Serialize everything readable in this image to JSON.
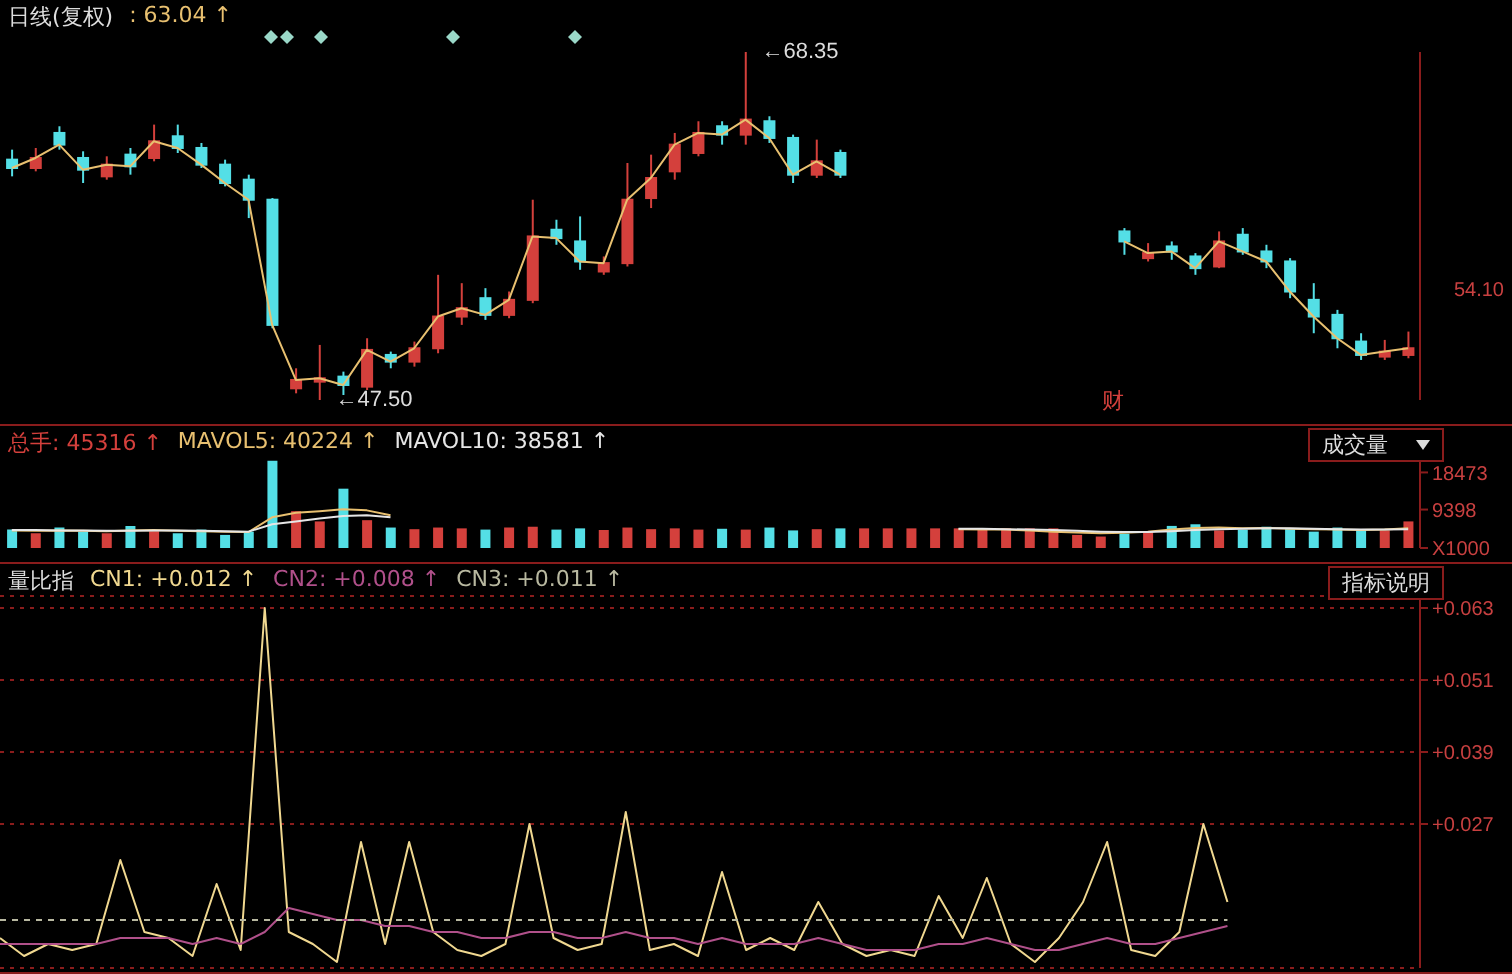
{
  "chart_data": [
    {
      "type": "candlestick",
      "title": "日线(复权)",
      "legend": "top left",
      "tick_labels": "y",
      "categories": [
        null,
        null,
        null,
        null,
        null,
        null,
        null,
        null,
        null,
        null,
        null,
        null,
        null,
        null,
        null,
        null,
        null,
        null,
        null,
        null,
        null,
        null,
        null,
        null,
        null,
        null,
        null,
        null,
        null,
        null,
        null,
        null,
        null,
        null,
        null,
        null,
        null,
        null,
        null,
        null,
        null,
        null,
        null,
        null,
        null,
        null,
        null,
        null,
        null,
        null,
        null,
        null,
        null,
        null,
        null,
        null,
        null,
        null,
        null,
        null
      ],
      "ohlc": [
        [
          61.9,
          62.5,
          60.9,
          61.4
        ],
        [
          61.4,
          62.6,
          61.2,
          62.0
        ],
        [
          63.5,
          63.9,
          62.5,
          62.8
        ],
        [
          62.0,
          62.4,
          60.5,
          61.3
        ],
        [
          60.9,
          62.1,
          60.7,
          61.6
        ],
        [
          62.2,
          62.6,
          61.0,
          61.5
        ],
        [
          62.0,
          64.0,
          61.8,
          63.0
        ],
        [
          63.3,
          64.0,
          62.3,
          62.6
        ],
        [
          62.6,
          62.9,
          61.4,
          61.6
        ],
        [
          61.6,
          61.9,
          60.3,
          60.5
        ],
        [
          60.7,
          61.0,
          58.4,
          59.5
        ],
        [
          59.5,
          59.6,
          51.8,
          52.0
        ],
        [
          48.2,
          49.4,
          47.9,
          48.7
        ],
        [
          48.6,
          50.8,
          47.5,
          48.8
        ],
        [
          48.9,
          49.2,
          47.8,
          48.4
        ],
        [
          48.3,
          51.2,
          48.1,
          50.5
        ],
        [
          50.2,
          50.4,
          49.4,
          49.8
        ],
        [
          49.8,
          51.0,
          49.5,
          50.6
        ],
        [
          50.6,
          55.0,
          50.3,
          52.5
        ],
        [
          52.5,
          54.5,
          52.0,
          53.0
        ],
        [
          53.6,
          54.2,
          52.3,
          52.6
        ],
        [
          52.6,
          54.0,
          52.4,
          53.5
        ],
        [
          53.5,
          59.5,
          53.3,
          57.3
        ],
        [
          57.7,
          58.3,
          56.8,
          57.2
        ],
        [
          57.0,
          58.5,
          55.3,
          55.8
        ],
        [
          55.2,
          56.1,
          55.0,
          55.7
        ],
        [
          55.7,
          61.7,
          55.5,
          59.5
        ],
        [
          59.6,
          62.2,
          59.0,
          60.8
        ],
        [
          61.2,
          63.5,
          60.7,
          62.8
        ],
        [
          62.3,
          64.2,
          62.1,
          63.5
        ],
        [
          63.9,
          64.2,
          62.8,
          63.4
        ],
        [
          63.4,
          68.35,
          62.8,
          64.3
        ],
        [
          64.2,
          64.5,
          62.9,
          63.2
        ],
        [
          63.2,
          63.4,
          60.5,
          61.0
        ],
        [
          61.0,
          63.1,
          60.8,
          61.8
        ],
        [
          62.3,
          62.5,
          60.8,
          61.0
        ],
        null,
        null,
        null,
        null,
        null,
        null,
        null,
        null,
        null,
        null,
        null,
        [
          57.6,
          57.8,
          56.2,
          57.0
        ],
        [
          56.0,
          56.9,
          55.8,
          56.3
        ],
        [
          56.7,
          57.0,
          55.9,
          56.4
        ],
        [
          56.1,
          56.3,
          55.0,
          55.4
        ],
        [
          55.5,
          57.6,
          55.4,
          57.0
        ],
        [
          57.4,
          57.8,
          56.2,
          56.4
        ],
        [
          56.4,
          56.8,
          55.4,
          55.8
        ],
        [
          55.8,
          56.0,
          53.6,
          54.0
        ],
        [
          53.5,
          54.5,
          51.5,
          52.5
        ],
        [
          52.6,
          52.9,
          50.6,
          51.2
        ],
        [
          51.0,
          51.5,
          49.9,
          50.2
        ],
        [
          50.1,
          51.1,
          49.9,
          50.4
        ],
        [
          50.2,
          51.6,
          50.0,
          50.6
        ]
      ],
      "colors": [
        "#54dfe6",
        "#d4403c",
        "#54dfe6",
        "#54dfe6",
        "#d4403c",
        "#54dfe6",
        "#d4403c",
        "#54dfe6",
        "#54dfe6",
        "#54dfe6",
        "#54dfe6",
        "#54dfe6",
        "#d4403c",
        "#d4403c",
        "#54dfe6",
        "#d4403c",
        "#54dfe6",
        "#d4403c",
        "#d4403c",
        "#d4403c",
        "#54dfe6",
        "#d4403c",
        "#d4403c",
        "#54dfe6",
        "#54dfe6",
        "#d4403c",
        "#d4403c",
        "#d4403c",
        "#d4403c",
        "#d4403c",
        "#54dfe6",
        "#d4403c",
        "#54dfe6",
        "#54dfe6",
        "#d4403c",
        "#54dfe6",
        null,
        null,
        null,
        null,
        null,
        null,
        null,
        null,
        null,
        null,
        null,
        "#54dfe6",
        "#d4403c",
        "#54dfe6",
        "#54dfe6",
        "#d4403c",
        "#54dfe6",
        "#54dfe6",
        "#54dfe6",
        "#54dfe6",
        "#54dfe6",
        "#54dfe6",
        "#d4403c",
        "#d4403c"
      ],
      "series": [
        {
          "type": "line",
          "name": ": 63.04 ↑",
          "color": "#e8c070",
          "values": [
            61.4,
            62.0,
            62.8,
            61.3,
            61.6,
            61.5,
            63.0,
            62.6,
            61.6,
            60.5,
            59.5,
            52.0,
            48.7,
            48.8,
            48.4,
            50.5,
            49.8,
            50.6,
            52.5,
            53.0,
            52.6,
            53.5,
            57.3,
            57.2,
            55.8,
            55.7,
            59.5,
            60.8,
            62.8,
            63.5,
            63.4,
            64.3,
            63.2,
            61.0,
            61.8,
            61.0,
            null,
            null,
            null,
            null,
            null,
            null,
            null,
            null,
            null,
            null,
            null,
            57.0,
            56.3,
            56.4,
            55.4,
            57.0,
            56.4,
            55.8,
            54.0,
            52.5,
            51.2,
            50.2,
            50.4,
            50.6
          ]
        }
      ],
      "annotations": [
        "←68.35",
        "←47.50",
        "财",
        "54.10"
      ]
    },
    {
      "type": "bar",
      "legend": "top left",
      "tick_labels": "y",
      "categories": [
        null,
        null,
        null,
        null,
        null,
        null,
        null,
        null,
        null,
        null,
        null,
        null,
        null,
        null,
        null,
        null,
        null,
        null,
        null,
        null,
        null,
        null,
        null,
        null,
        null,
        null,
        null,
        null,
        null,
        null,
        null,
        null,
        null,
        null,
        null,
        null,
        null,
        null,
        null,
        null,
        null,
        null,
        null,
        null,
        null,
        null,
        null,
        null,
        null,
        null,
        null,
        null,
        null,
        null,
        null,
        null,
        null,
        null,
        null,
        null
      ],
      "series": [
        {
          "type": "bar",
          "name": "总手: 45316 ↑",
          "color": "#d4403c",
          "colors": [
            "#54dfe6",
            "#d4403c",
            "#54dfe6",
            "#54dfe6",
            "#d4403c",
            "#54dfe6",
            "#d4403c",
            "#54dfe6",
            "#54dfe6",
            "#54dfe6",
            "#54dfe6",
            "#54dfe6",
            "#d4403c",
            "#d4403c",
            "#54dfe6",
            "#d4403c",
            "#54dfe6",
            "#d4403c",
            "#d4403c",
            "#d4403c",
            "#54dfe6",
            "#d4403c",
            "#d4403c",
            "#54dfe6",
            "#54dfe6",
            "#d4403c",
            "#d4403c",
            "#d4403c",
            "#d4403c",
            "#d4403c",
            "#54dfe6",
            "#d4403c",
            "#54dfe6",
            "#54dfe6",
            "#d4403c",
            "#54dfe6",
            "#d4403c",
            "#d4403c",
            "#d4403c",
            "#d4403c",
            "#d4403c",
            "#d4403c",
            "#d4403c",
            "#d4403c",
            "#d4403c",
            "#d4403c",
            "#d4403c",
            "#54dfe6",
            "#d4403c",
            "#54dfe6",
            "#54dfe6",
            "#d4403c",
            "#54dfe6",
            "#54dfe6",
            "#54dfe6",
            "#54dfe6",
            "#54dfe6",
            "#54dfe6",
            "#d4403c",
            "#d4403c"
          ],
          "values": [
            4500,
            3600,
            5000,
            4000,
            3600,
            5400,
            4100,
            3600,
            4500,
            3200,
            4000,
            21300,
            9000,
            6500,
            14500,
            6800,
            5000,
            4600,
            5000,
            4800,
            4500,
            5000,
            5200,
            4500,
            4800,
            4400,
            5000,
            4600,
            4800,
            4500,
            4700,
            4500,
            5000,
            4300,
            4600,
            4800,
            4800,
            4800,
            4800,
            4800,
            4800,
            4800,
            4800,
            4800,
            4800,
            3200,
            2800,
            3500,
            4000,
            5400,
            5800,
            4300,
            4500,
            5200,
            4700,
            4000,
            5000,
            4400,
            4300,
            6500
          ]
        },
        {
          "type": "line",
          "name": "MAVOL5: 40224 ↑",
          "color": "#e8c070",
          "values": [
            4300,
            4200,
            4300,
            4200,
            4100,
            4300,
            4400,
            4200,
            4100,
            4000,
            3900,
            7500,
            8600,
            9000,
            9500,
            9200,
            8000,
            null,
            null,
            null,
            null,
            null,
            null,
            null,
            null,
            null,
            null,
            null,
            null,
            null,
            null,
            null,
            null,
            null,
            null,
            null,
            null,
            null,
            null,
            null,
            4600,
            4500,
            4500,
            4300,
            4000,
            3800,
            3600,
            3700,
            4000,
            4500,
            4900,
            5000,
            4800,
            4900,
            4700,
            4600,
            4500,
            4400,
            4500,
            4800
          ]
        },
        {
          "type": "line",
          "name": "MAVOL10: 38581 ↑",
          "color": "#e6e6e6",
          "values": [
            4400,
            4400,
            4300,
            4300,
            4200,
            4200,
            4300,
            4300,
            4200,
            4100,
            4000,
            5800,
            6500,
            7200,
            7800,
            8000,
            7500,
            null,
            null,
            null,
            null,
            null,
            null,
            null,
            null,
            null,
            null,
            null,
            null,
            null,
            null,
            null,
            null,
            null,
            null,
            null,
            null,
            null,
            null,
            null,
            4700,
            4700,
            4600,
            4500,
            4400,
            4200,
            4000,
            3900,
            3900,
            4100,
            4400,
            4600,
            4700,
            4800,
            4800,
            4700,
            4600,
            4500,
            4500,
            4600
          ]
        }
      ],
      "ylim": [
        0,
        22000
      ],
      "yticks": [
        {
          "value": 0,
          "label": "X1000"
        },
        9398,
        18473
      ],
      "annotations": [
        "成交量"
      ]
    },
    {
      "type": "line",
      "title": "量比指",
      "legend": "top left",
      "tick_labels": "y",
      "grid": "y",
      "categories": [
        null,
        null,
        null,
        null,
        null,
        null,
        null,
        null,
        null,
        null,
        null,
        null,
        null,
        null,
        null,
        null,
        null,
        null,
        null,
        null,
        null,
        null,
        null,
        null,
        null,
        null,
        null,
        null,
        null,
        null,
        null,
        null,
        null,
        null,
        null,
        null,
        null,
        null,
        null,
        null,
        null,
        null,
        null,
        null,
        null,
        null,
        null,
        null,
        null,
        null,
        null,
        null,
        null,
        null,
        null,
        null,
        null,
        null,
        null,
        null
      ],
      "series": [
        {
          "name": "CN1: +0.012 ↑",
          "color": "#f0d890",
          "values": [
            0.008,
            0.005,
            0.007,
            0.006,
            0.007,
            0.021,
            0.009,
            0.008,
            0.005,
            0.017,
            0.006,
            0.063,
            0.009,
            0.007,
            0.004,
            0.024,
            0.007,
            0.024,
            0.009,
            0.006,
            0.005,
            0.007,
            0.027,
            0.008,
            0.006,
            0.007,
            0.029,
            0.006,
            0.007,
            0.005,
            0.019,
            0.006,
            0.008,
            0.006,
            0.014,
            0.007,
            0.005,
            0.006,
            0.005,
            0.015,
            0.008,
            0.018,
            0.007,
            0.004,
            0.008,
            0.014,
            0.024,
            0.006,
            0.005,
            0.009,
            0.027,
            0.014,
            null,
            null,
            null,
            null,
            null,
            null,
            null,
            null
          ]
        },
        {
          "name": "CN2: +0.008 ↑",
          "color": "#b0508a",
          "values": [
            0.007,
            0.007,
            0.007,
            0.007,
            0.007,
            0.008,
            0.008,
            0.008,
            0.007,
            0.008,
            0.007,
            0.009,
            0.013,
            0.012,
            0.011,
            0.011,
            0.01,
            0.01,
            0.009,
            0.009,
            0.008,
            0.008,
            0.009,
            0.009,
            0.008,
            0.008,
            0.009,
            0.008,
            0.008,
            0.007,
            0.008,
            0.007,
            0.007,
            0.007,
            0.008,
            0.007,
            0.006,
            0.006,
            0.006,
            0.007,
            0.007,
            0.008,
            0.007,
            0.006,
            0.006,
            0.007,
            0.008,
            0.007,
            0.007,
            0.008,
            0.009,
            0.01,
            null,
            null,
            null,
            null,
            null,
            null,
            null,
            null
          ]
        },
        {
          "name": "CN3: +0.011 ↑",
          "color": "#b8b8a0",
          "line_style": "dashed",
          "values": [
            0.011,
            0.011,
            0.011,
            0.011,
            0.011,
            0.011,
            0.011,
            0.011,
            0.011,
            0.011,
            0.011,
            0.011,
            0.011,
            0.011,
            0.011,
            0.011,
            0.011,
            0.011,
            0.011,
            0.011,
            0.011,
            0.011,
            0.011,
            0.011,
            0.011,
            0.011,
            0.011,
            0.011,
            0.011,
            0.011,
            0.011,
            0.011,
            0.011,
            0.011,
            0.011,
            0.011,
            0.011,
            0.011,
            0.011,
            0.011,
            0.011,
            0.011,
            0.011,
            0.011,
            0.011,
            0.011,
            0.011,
            0.011,
            0.011,
            0.011,
            0.011,
            0.011,
            null,
            null,
            null,
            null,
            null,
            null,
            null,
            null
          ]
        }
      ],
      "ylim": [
        0.003,
        0.065
      ],
      "yticks": [
        {
          "value": 0.027,
          "label": "+0.027"
        },
        {
          "value": 0.039,
          "label": "+0.039"
        },
        {
          "value": 0.051,
          "label": "+0.051"
        },
        {
          "value": 0.063,
          "label": "+0.063"
        }
      ],
      "annotations": [
        "指标说明"
      ]
    }
  ]
}
